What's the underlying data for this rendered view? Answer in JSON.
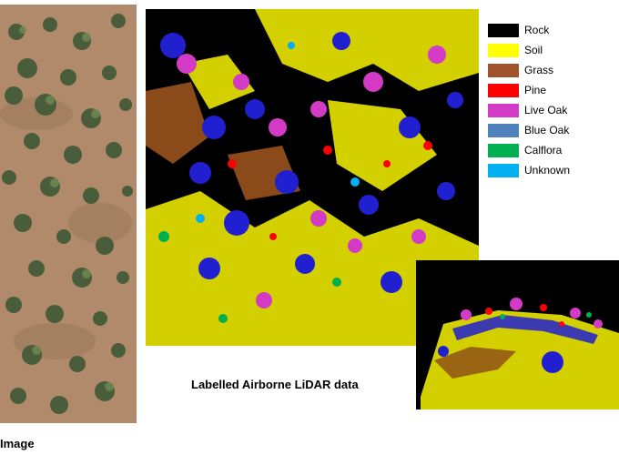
{
  "aerial_caption": "Image",
  "lidar_caption": "Labelled Airborne LiDAR data",
  "legend": [
    {
      "label": "Rock",
      "color": "#000000"
    },
    {
      "label": "Soil",
      "color": "#ffff00"
    },
    {
      "label": "Grass",
      "color": "#a0522d"
    },
    {
      "label": "Pine",
      "color": "#ff0000"
    },
    {
      "label": "Live Oak",
      "color": "#d33bc7"
    },
    {
      "label": "Blue Oak",
      "color": "#4f81bd"
    },
    {
      "label": "Calflora",
      "color": "#00b050"
    },
    {
      "label": "Unknown",
      "color": "#00b0f0"
    }
  ]
}
